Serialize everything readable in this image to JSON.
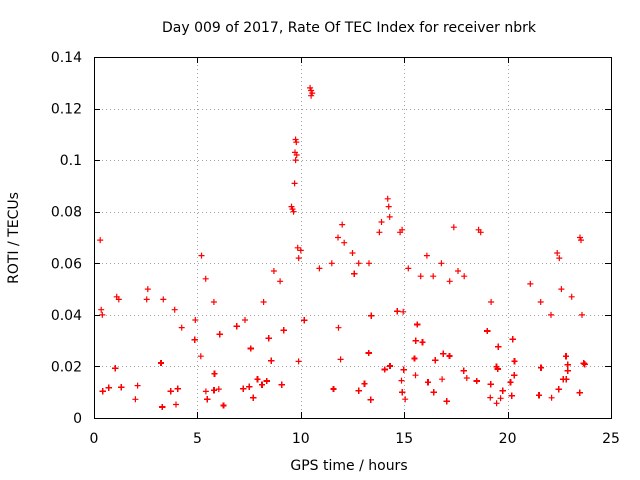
{
  "chart_data": {
    "type": "scatter",
    "title": "Day 009 of 2017, Rate Of TEC Index for receiver nbrk",
    "xlabel": "GPS time / hours",
    "ylabel": "ROTI / TECUs",
    "xlim": [
      0,
      25
    ],
    "ylim": [
      0,
      0.14
    ],
    "x_ticks": [
      0,
      5,
      10,
      15,
      20,
      25
    ],
    "x_tick_labels": [
      "0",
      "5",
      "10",
      "15",
      "20",
      "25"
    ],
    "y_ticks": [
      0,
      0.02,
      0.04,
      0.06,
      0.08,
      0.1,
      0.12,
      0.14
    ],
    "y_tick_labels": [
      "0",
      "0.02",
      "0.04",
      "0.06",
      "0.08",
      "0.1",
      "0.12",
      "0.14"
    ],
    "grid": true,
    "marker": "+",
    "color": "#ff0000",
    "series": [
      {
        "name": "ROTI",
        "gap_hours": [
          2.7,
          3.0
        ],
        "data_extent_hours": [
          0.0,
          23.8
        ],
        "baseline_band": [
          {
            "hour": 0.0,
            "low": 0.004,
            "high": 0.026
          },
          {
            "hour": 2.7,
            "low": 0.004,
            "high": 0.028
          },
          {
            "hour": 3.0,
            "low": 0.004,
            "high": 0.03
          },
          {
            "hour": 6.0,
            "low": 0.004,
            "high": 0.034
          },
          {
            "hour": 9.0,
            "low": 0.006,
            "high": 0.04
          },
          {
            "hour": 12.0,
            "low": 0.008,
            "high": 0.045
          },
          {
            "hour": 15.0,
            "low": 0.006,
            "high": 0.042
          },
          {
            "hour": 18.0,
            "low": 0.005,
            "high": 0.036
          },
          {
            "hour": 21.0,
            "low": 0.004,
            "high": 0.03
          },
          {
            "hour": 23.8,
            "low": 0.004,
            "high": 0.028
          }
        ],
        "notable_points": [
          [
            0.3,
            0.069
          ],
          [
            0.35,
            0.042
          ],
          [
            0.4,
            0.04
          ],
          [
            1.1,
            0.047
          ],
          [
            1.2,
            0.046
          ],
          [
            2.6,
            0.05
          ],
          [
            2.55,
            0.046
          ],
          [
            3.35,
            0.046
          ],
          [
            3.9,
            0.042
          ],
          [
            4.9,
            0.038
          ],
          [
            5.2,
            0.063
          ],
          [
            5.4,
            0.054
          ],
          [
            5.8,
            0.045
          ],
          [
            7.3,
            0.038
          ],
          [
            8.2,
            0.045
          ],
          [
            8.7,
            0.057
          ],
          [
            9.0,
            0.053
          ],
          [
            9.55,
            0.082
          ],
          [
            9.6,
            0.081
          ],
          [
            9.65,
            0.08
          ],
          [
            9.75,
            0.108
          ],
          [
            9.78,
            0.107
          ],
          [
            9.72,
            0.103
          ],
          [
            9.8,
            0.102
          ],
          [
            9.75,
            0.1
          ],
          [
            9.7,
            0.091
          ],
          [
            9.85,
            0.066
          ],
          [
            9.9,
            0.062
          ],
          [
            10.0,
            0.065
          ],
          [
            10.45,
            0.128
          ],
          [
            10.5,
            0.127
          ],
          [
            10.55,
            0.126
          ],
          [
            10.5,
            0.125
          ],
          [
            10.9,
            0.058
          ],
          [
            11.5,
            0.06
          ],
          [
            11.8,
            0.07
          ],
          [
            12.0,
            0.075
          ],
          [
            12.1,
            0.068
          ],
          [
            12.5,
            0.064
          ],
          [
            12.8,
            0.06
          ],
          [
            13.3,
            0.06
          ],
          [
            13.8,
            0.072
          ],
          [
            13.9,
            0.076
          ],
          [
            14.2,
            0.085
          ],
          [
            14.25,
            0.082
          ],
          [
            14.3,
            0.078
          ],
          [
            14.8,
            0.072
          ],
          [
            14.9,
            0.073
          ],
          [
            15.2,
            0.058
          ],
          [
            15.8,
            0.055
          ],
          [
            16.1,
            0.063
          ],
          [
            16.4,
            0.055
          ],
          [
            16.8,
            0.06
          ],
          [
            17.2,
            0.053
          ],
          [
            17.4,
            0.074
          ],
          [
            17.6,
            0.057
          ],
          [
            17.9,
            0.055
          ],
          [
            18.6,
            0.073
          ],
          [
            18.7,
            0.072
          ],
          [
            19.2,
            0.045
          ],
          [
            21.1,
            0.052
          ],
          [
            21.6,
            0.045
          ],
          [
            22.1,
            0.04
          ],
          [
            22.4,
            0.064
          ],
          [
            22.5,
            0.062
          ],
          [
            22.6,
            0.05
          ],
          [
            23.1,
            0.047
          ],
          [
            23.5,
            0.07
          ],
          [
            23.55,
            0.069
          ],
          [
            23.6,
            0.04
          ]
        ]
      }
    ]
  }
}
